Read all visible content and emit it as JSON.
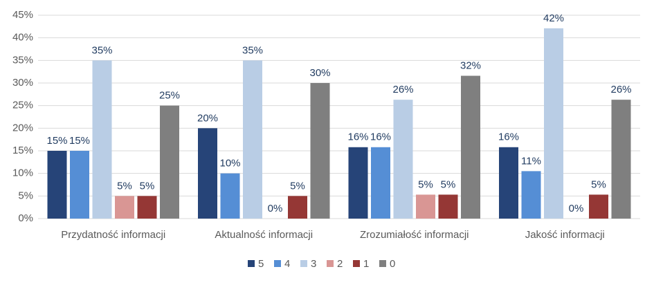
{
  "chart_data": {
    "type": "bar",
    "categories": [
      "Przydatność informacji",
      "Aktualność informacji",
      "Zrozumiałość informacji",
      "Jakość informacji"
    ],
    "series": [
      {
        "name": "5",
        "color": "#264478",
        "values": [
          15,
          20,
          15.8,
          15.8
        ],
        "value_labels": [
          "15%",
          "20%",
          "16%",
          "16%"
        ]
      },
      {
        "name": "4",
        "color": "#558ed5",
        "values": [
          15,
          10,
          15.8,
          10.5
        ],
        "value_labels": [
          "15%",
          "10%",
          "16%",
          "11%"
        ]
      },
      {
        "name": "3",
        "color": "#b9cde5",
        "values": [
          35,
          35,
          26.3,
          42.1
        ],
        "value_labels": [
          "35%",
          "35%",
          "26%",
          "42%"
        ]
      },
      {
        "name": "2",
        "color": "#d99694",
        "values": [
          5,
          0,
          5.3,
          0
        ],
        "value_labels": [
          "5%",
          "0%",
          "5%",
          "0%"
        ]
      },
      {
        "name": "1",
        "color": "#953735",
        "values": [
          5,
          5,
          5.3,
          5.3
        ],
        "value_labels": [
          "5%",
          "5%",
          "5%",
          "5%"
        ]
      },
      {
        "name": "0",
        "color": "#7f7f7f",
        "values": [
          25,
          30,
          31.6,
          26.3
        ],
        "value_labels": [
          "25%",
          "30%",
          "32%",
          "26%"
        ]
      }
    ],
    "ylim": [
      0,
      45
    ],
    "yticks": [
      {
        "value": 0,
        "label": "0%"
      },
      {
        "value": 5,
        "label": "5%"
      },
      {
        "value": 10,
        "label": "10%"
      },
      {
        "value": 15,
        "label": "15%"
      },
      {
        "value": 20,
        "label": "20%"
      },
      {
        "value": 25,
        "label": "25%"
      },
      {
        "value": 30,
        "label": "30%"
      },
      {
        "value": 35,
        "label": "35%"
      },
      {
        "value": 40,
        "label": "40%"
      },
      {
        "value": 45,
        "label": "45%"
      }
    ],
    "grid": true,
    "legend": "bottom"
  }
}
